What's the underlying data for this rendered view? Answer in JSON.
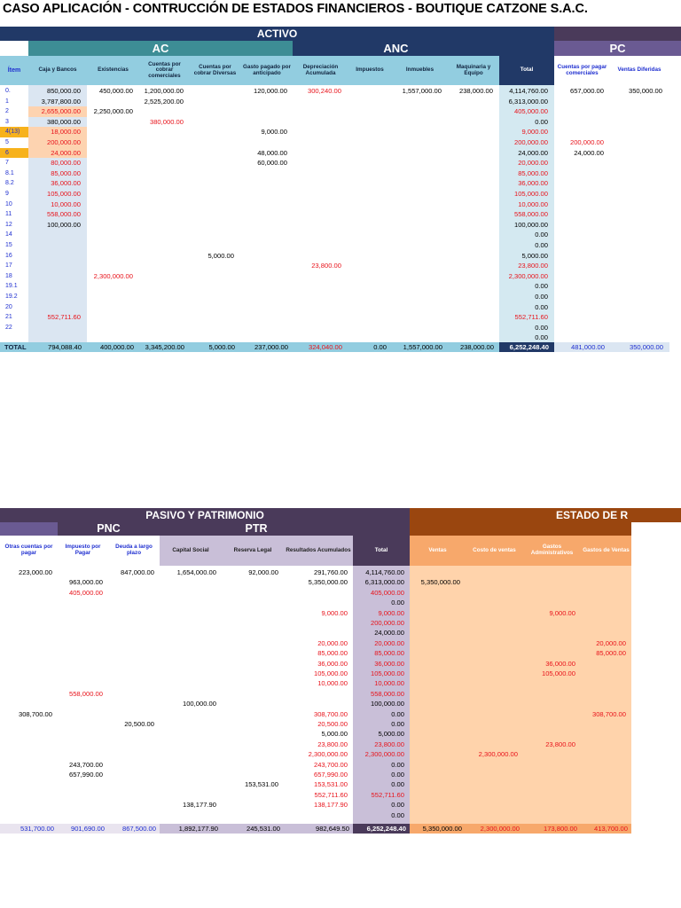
{
  "title": "CASO APLICACIÓN - CONTRUCCIÓN DE ESTADOS FINANCIEROS - BOUTIQUE CATZONE S.A.C.",
  "colors": {
    "navy": "#213967",
    "teal": "#3d8d95",
    "lightblue": "#92cde0",
    "purple": "#4a3a5a",
    "violet": "#6a5a92",
    "lilac": "#c9bfd8",
    "orange": "#9a460f",
    "peach": "#ffd3ab",
    "salmon": "#f7a86b",
    "colTint": "#dbe6f2",
    "totalTint": "#d4e9f1",
    "red": "#e8131b",
    "blue": "#1f2fd0"
  },
  "top": {
    "activo": "ACTIVO",
    "ac": "AC",
    "anc": "ANC",
    "pc": "PC",
    "headers": [
      "Ítem",
      "Caja y Bancos",
      "Existencias",
      "Cuentas por cobrar comerciales",
      "Cuentas por cobrar Diversas",
      "Gasto pagado por anticipado",
      "Depreciación Acumulada",
      "Impuestos",
      "Inmuebles",
      "Maquinaria y Equipo",
      "Total",
      "Cuentas por pagar comerciales",
      "Ventas Diferidas"
    ],
    "items": [
      "0.",
      "1",
      "2",
      "3",
      "4(13)",
      "5",
      "6",
      "7",
      "8.1",
      "8.2",
      "9",
      "10",
      "11",
      "12",
      "14",
      "15",
      "16",
      "17",
      "18",
      "19.1",
      "19.2",
      "20",
      "21",
      "22"
    ],
    "cells": [
      [
        0,
        1,
        "850,000.00",
        "k"
      ],
      [
        0,
        2,
        "450,000.00",
        "k"
      ],
      [
        0,
        3,
        "1,200,000.00",
        "k"
      ],
      [
        0,
        5,
        "120,000.00",
        "k"
      ],
      [
        0,
        6,
        "300,240.00",
        "r"
      ],
      [
        0,
        8,
        "1,557,000.00",
        "k"
      ],
      [
        0,
        9,
        "238,000.00",
        "k"
      ],
      [
        0,
        10,
        "4,114,760.00",
        "k"
      ],
      [
        0,
        11,
        "657,000.00",
        "k"
      ],
      [
        0,
        12,
        "350,000.00",
        "k"
      ],
      [
        1,
        1,
        "3,787,800.00",
        "k"
      ],
      [
        1,
        3,
        "2,525,200.00",
        "k"
      ],
      [
        1,
        10,
        "6,313,000.00",
        "k"
      ],
      [
        2,
        1,
        "2,655,000.00",
        "r"
      ],
      [
        2,
        2,
        "2,250,000.00",
        "k"
      ],
      [
        2,
        10,
        "405,000.00",
        "r"
      ],
      [
        3,
        1,
        "380,000.00",
        "k"
      ],
      [
        3,
        3,
        "380,000.00",
        "r"
      ],
      [
        3,
        10,
        "0.00",
        "k"
      ],
      [
        4,
        1,
        "18,000.00",
        "r"
      ],
      [
        4,
        5,
        "9,000.00",
        "k"
      ],
      [
        4,
        10,
        "9,000.00",
        "r"
      ],
      [
        5,
        1,
        "200,000.00",
        "r"
      ],
      [
        5,
        10,
        "200,000.00",
        "r"
      ],
      [
        5,
        11,
        "200,000.00",
        "r"
      ],
      [
        6,
        1,
        "24,000.00",
        "r"
      ],
      [
        6,
        5,
        "48,000.00",
        "k"
      ],
      [
        6,
        10,
        "24,000.00",
        "k"
      ],
      [
        6,
        11,
        "24,000.00",
        "k"
      ],
      [
        7,
        1,
        "80,000.00",
        "r"
      ],
      [
        7,
        5,
        "60,000.00",
        "k"
      ],
      [
        7,
        10,
        "20,000.00",
        "r"
      ],
      [
        8,
        1,
        "85,000.00",
        "r"
      ],
      [
        8,
        10,
        "85,000.00",
        "r"
      ],
      [
        9,
        1,
        "36,000.00",
        "r"
      ],
      [
        9,
        10,
        "36,000.00",
        "r"
      ],
      [
        10,
        1,
        "105,000.00",
        "r"
      ],
      [
        10,
        10,
        "105,000.00",
        "r"
      ],
      [
        11,
        1,
        "10,000.00",
        "r"
      ],
      [
        11,
        10,
        "10,000.00",
        "r"
      ],
      [
        12,
        1,
        "558,000.00",
        "r"
      ],
      [
        12,
        10,
        "558,000.00",
        "r"
      ],
      [
        13,
        1,
        "100,000.00",
        "k"
      ],
      [
        13,
        10,
        "100,000.00",
        "k"
      ],
      [
        14,
        10,
        "0.00",
        "k"
      ],
      [
        15,
        10,
        "0.00",
        "k"
      ],
      [
        16,
        4,
        "5,000.00",
        "k"
      ],
      [
        16,
        10,
        "5,000.00",
        "k"
      ],
      [
        17,
        6,
        "23,800.00",
        "r"
      ],
      [
        17,
        10,
        "23,800.00",
        "r"
      ],
      [
        18,
        2,
        "2,300,000.00",
        "r"
      ],
      [
        18,
        10,
        "2,300,000.00",
        "r"
      ],
      [
        19,
        10,
        "0.00",
        "k"
      ],
      [
        20,
        10,
        "0.00",
        "k"
      ],
      [
        21,
        10,
        "0.00",
        "k"
      ],
      [
        22,
        1,
        "552,711.60",
        "r"
      ],
      [
        22,
        10,
        "552,711.60",
        "r"
      ],
      [
        23,
        10,
        "0.00",
        "k"
      ],
      [
        24,
        10,
        "0.00",
        "k"
      ]
    ],
    "total_label": "TOTAL",
    "totals": [
      "794,088.40",
      "400,000.00",
      "3,345,200.00",
      "5,000.00",
      "237,000.00",
      "324,040.00",
      "0.00",
      "1,557,000.00",
      "238,000.00",
      "6,252,248.40",
      "481,000.00",
      "350,000.00"
    ]
  },
  "bottom": {
    "pasivo": "PASIVO Y PATRIMONIO",
    "estado": "ESTADO DE R",
    "pnc": "PNC",
    "ptr": "PTR",
    "headers": [
      "Otras cuentas por pagar",
      "Impuesto por Pagar",
      "Deuda a largo plazo",
      "Capital Social",
      "Reserva Legal",
      "Resultados Acumulados",
      "Total",
      "Ventas",
      "Costo de ventas",
      "Gastos Administrativos",
      "Gastos de Ventas"
    ],
    "cells": [
      [
        0,
        0,
        "223,000.00",
        "k"
      ],
      [
        0,
        2,
        "847,000.00",
        "k"
      ],
      [
        0,
        3,
        "1,654,000.00",
        "k"
      ],
      [
        0,
        4,
        "92,000.00",
        "k"
      ],
      [
        0,
        5,
        "291,760.00",
        "k"
      ],
      [
        0,
        6,
        "4,114,760.00",
        "k"
      ],
      [
        1,
        1,
        "963,000.00",
        "k"
      ],
      [
        1,
        5,
        "5,350,000.00",
        "k"
      ],
      [
        1,
        6,
        "6,313,000.00",
        "k"
      ],
      [
        1,
        7,
        "5,350,000.00",
        "k"
      ],
      [
        2,
        1,
        "405,000.00",
        "r"
      ],
      [
        2,
        6,
        "405,000.00",
        "r"
      ],
      [
        3,
        6,
        "0.00",
        "k"
      ],
      [
        4,
        5,
        "9,000.00",
        "r"
      ],
      [
        4,
        6,
        "9,000.00",
        "r"
      ],
      [
        4,
        9,
        "9,000.00",
        "r"
      ],
      [
        5,
        6,
        "200,000.00",
        "r"
      ],
      [
        6,
        6,
        "24,000.00",
        "k"
      ],
      [
        7,
        5,
        "20,000.00",
        "r"
      ],
      [
        7,
        6,
        "20,000.00",
        "r"
      ],
      [
        7,
        10,
        "20,000.00",
        "r"
      ],
      [
        8,
        5,
        "85,000.00",
        "r"
      ],
      [
        8,
        6,
        "85,000.00",
        "r"
      ],
      [
        8,
        10,
        "85,000.00",
        "r"
      ],
      [
        9,
        5,
        "36,000.00",
        "r"
      ],
      [
        9,
        6,
        "36,000.00",
        "r"
      ],
      [
        9,
        9,
        "36,000.00",
        "r"
      ],
      [
        10,
        5,
        "105,000.00",
        "r"
      ],
      [
        10,
        6,
        "105,000.00",
        "r"
      ],
      [
        10,
        9,
        "105,000.00",
        "r"
      ],
      [
        11,
        5,
        "10,000.00",
        "r"
      ],
      [
        11,
        6,
        "10,000.00",
        "r"
      ],
      [
        12,
        1,
        "558,000.00",
        "r"
      ],
      [
        12,
        6,
        "558,000.00",
        "r"
      ],
      [
        13,
        3,
        "100,000.00",
        "k"
      ],
      [
        13,
        6,
        "100,000.00",
        "k"
      ],
      [
        14,
        0,
        "308,700.00",
        "k"
      ],
      [
        14,
        5,
        "308,700.00",
        "r"
      ],
      [
        14,
        6,
        "0.00",
        "k"
      ],
      [
        14,
        10,
        "308,700.00",
        "r"
      ],
      [
        15,
        2,
        "20,500.00",
        "k"
      ],
      [
        15,
        5,
        "20,500.00",
        "r"
      ],
      [
        15,
        6,
        "0.00",
        "k"
      ],
      [
        16,
        5,
        "5,000.00",
        "k"
      ],
      [
        16,
        6,
        "5,000.00",
        "k"
      ],
      [
        17,
        5,
        "23,800.00",
        "r"
      ],
      [
        17,
        6,
        "23,800.00",
        "r"
      ],
      [
        17,
        9,
        "23,800.00",
        "r"
      ],
      [
        18,
        5,
        "2,300,000.00",
        "r"
      ],
      [
        18,
        6,
        "2,300,000.00",
        "r"
      ],
      [
        18,
        8,
        "2,300,000.00",
        "r"
      ],
      [
        19,
        1,
        "243,700.00",
        "k"
      ],
      [
        19,
        5,
        "243,700.00",
        "r"
      ],
      [
        19,
        6,
        "0.00",
        "k"
      ],
      [
        20,
        1,
        "657,990.00",
        "k"
      ],
      [
        20,
        5,
        "657,990.00",
        "r"
      ],
      [
        20,
        6,
        "0.00",
        "k"
      ],
      [
        21,
        4,
        "153,531.00",
        "k"
      ],
      [
        21,
        5,
        "153,531.00",
        "r"
      ],
      [
        21,
        6,
        "0.00",
        "k"
      ],
      [
        22,
        5,
        "552,711.60",
        "r"
      ],
      [
        22,
        6,
        "552,711.60",
        "r"
      ],
      [
        23,
        3,
        "138,177.90",
        "k"
      ],
      [
        23,
        5,
        "138,177.90",
        "r"
      ],
      [
        23,
        6,
        "0.00",
        "k"
      ],
      [
        24,
        6,
        "0.00",
        "k"
      ]
    ],
    "totals": [
      "531,700.00",
      "901,690.00",
      "867,500.00",
      "1,892,177.90",
      "245,531.00",
      "982,649.50",
      "6,252,248.40",
      "5,350,000.00",
      "2,300,000.00",
      "173,800.00",
      "413,700.00"
    ]
  }
}
